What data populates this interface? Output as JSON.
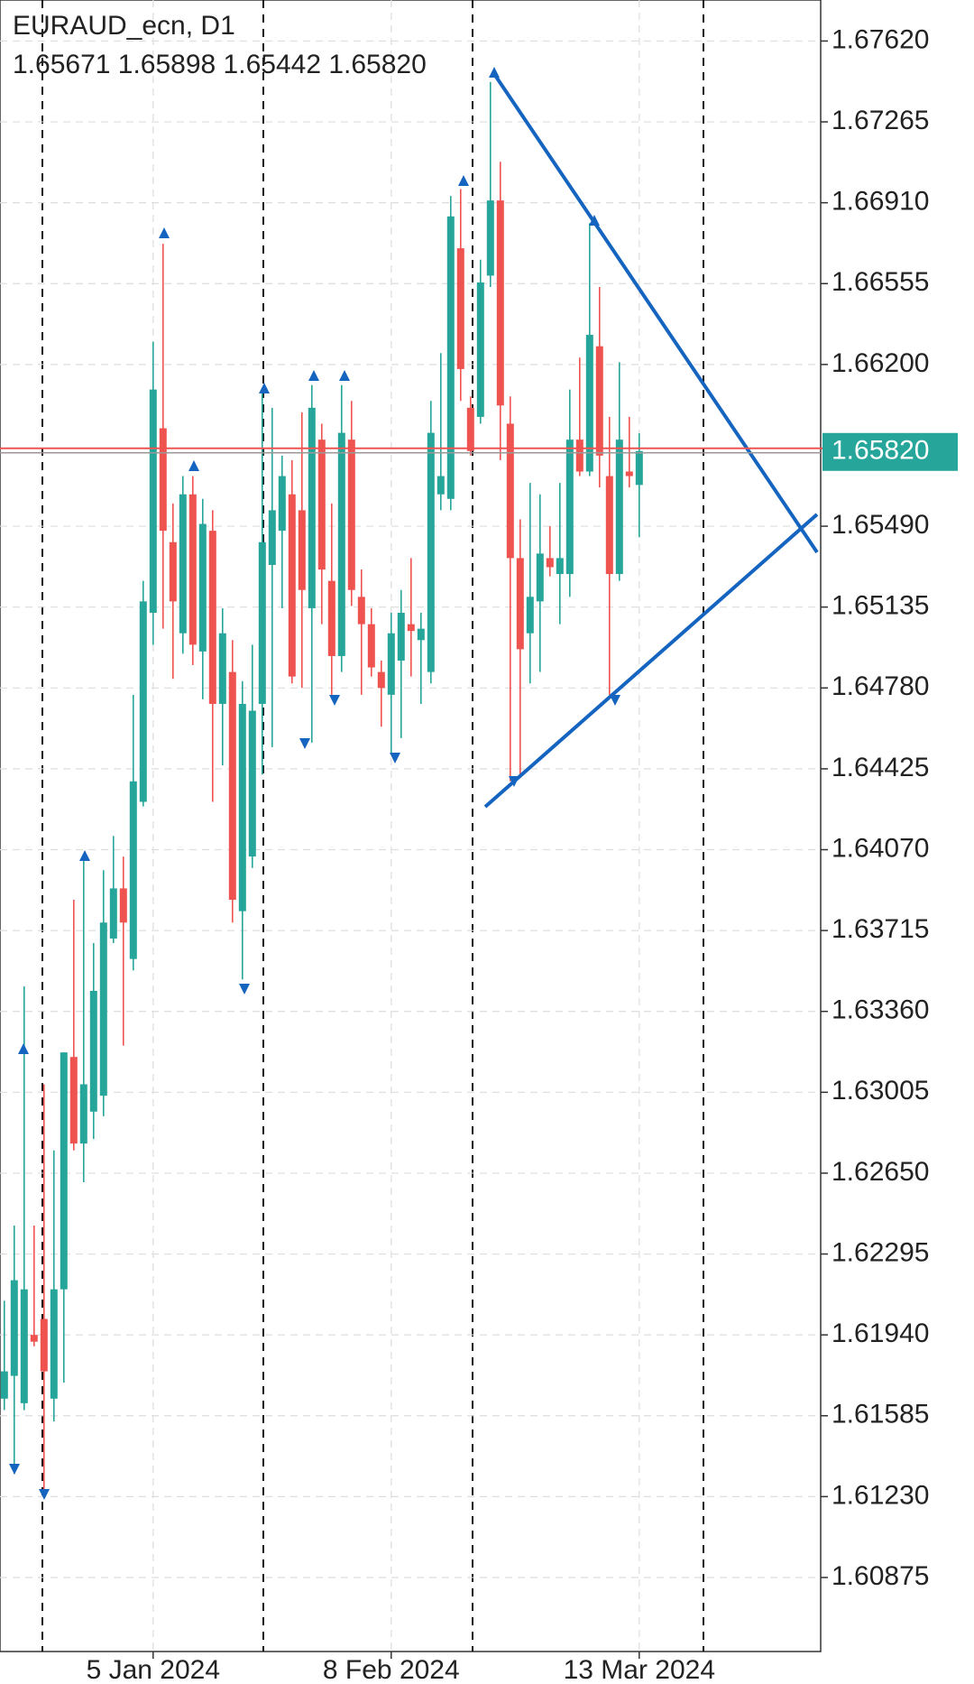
{
  "chart_data": {
    "type": "candlestick",
    "title": "EURAUD_ecn, D1",
    "subtitle": "1.65671 1.65898 1.65442 1.65820",
    "categories": [
      null,
      null,
      null,
      null,
      null,
      null,
      null,
      null,
      null,
      null,
      null,
      null,
      null,
      null,
      null,
      "5 Jan 2024",
      null,
      null,
      null,
      null,
      null,
      null,
      null,
      null,
      null,
      null,
      null,
      null,
      null,
      null,
      null,
      null,
      null,
      null,
      null,
      null,
      null,
      null,
      null,
      "8 Feb 2024",
      null,
      null,
      null,
      null,
      null,
      null,
      null,
      null,
      null,
      null,
      null,
      null,
      null,
      null,
      null,
      null,
      null,
      null,
      null,
      null,
      null,
      null,
      null,
      null,
      "13 Mar 2024"
    ],
    "open": [
      1.6166,
      1.6176,
      1.6164,
      1.6194,
      1.6201,
      1.6166,
      1.6214,
      1.6316,
      1.6278,
      1.6292,
      1.6299,
      1.6368,
      1.639,
      1.6359,
      1.6428,
      1.6511,
      1.6592,
      1.6542,
      1.6502,
      1.6563,
      1.6494,
      1.6547,
      1.6471,
      1.6485,
      1.638,
      1.6404,
      1.6471,
      1.6532,
      1.6547,
      1.6563,
      1.6556,
      1.6513,
      1.6587,
      1.6525,
      1.6492,
      1.6587,
      1.6518,
      1.6506,
      1.6485,
      1.6475,
      1.649,
      1.6506,
      1.6499,
      1.6485,
      1.6563,
      1.6561,
      1.6671,
      1.6601,
      1.6597,
      1.6659,
      1.6692,
      1.6594,
      1.6535,
      1.6502,
      1.6516,
      1.6535,
      1.6528,
      1.6528,
      1.6587,
      1.6573,
      1.6628,
      1.6571,
      1.6528,
      1.6573,
      1.65671
    ],
    "high": [
      1.6209,
      1.6242,
      1.6347,
      1.6242,
      1.6304,
      1.6275,
      1.6318,
      1.6385,
      1.6404,
      1.6366,
      1.6398,
      1.6413,
      1.6404,
      1.6475,
      1.6525,
      1.663,
      1.6673,
      1.6559,
      1.6571,
      1.6571,
      1.6561,
      1.6556,
      1.6513,
      1.6499,
      1.6481,
      1.6497,
      1.6609,
      1.6601,
      1.658,
      1.6578,
      1.6599,
      1.6611,
      1.6594,
      1.6559,
      1.6611,
      1.6604,
      1.653,
      1.6513,
      1.649,
      1.6511,
      1.6521,
      1.6535,
      1.6511,
      1.6604,
      1.6625,
      1.6694,
      1.6697,
      1.6606,
      1.6666,
      1.6744,
      1.6709,
      1.6606,
      1.6552,
      1.6568,
      1.6563,
      1.6549,
      1.6568,
      1.6609,
      1.6623,
      1.6682,
      1.6654,
      1.6597,
      1.6621,
      1.6597,
      1.65898
    ],
    "low": [
      1.6161,
      1.6133,
      1.6161,
      1.6189,
      1.6126,
      1.6156,
      1.6173,
      1.6275,
      1.6261,
      1.628,
      1.629,
      1.6366,
      1.6321,
      1.6354,
      1.6426,
      1.6497,
      1.6504,
      1.6482,
      1.6493,
      1.6488,
      1.6473,
      1.6428,
      1.6444,
      1.6375,
      1.635,
      1.6399,
      1.644,
      1.6452,
      1.6513,
      1.648,
      1.6478,
      1.6454,
      1.6506,
      1.6475,
      1.6485,
      1.6514,
      1.6475,
      1.6483,
      1.6461,
      1.6449,
      1.6456,
      1.6483,
      1.6471,
      1.648,
      1.6556,
      1.6556,
      1.6604,
      1.658,
      1.6594,
      1.6654,
      1.6578,
      1.6437,
      1.644,
      1.648,
      1.6485,
      1.6527,
      1.6506,
      1.6518,
      1.6571,
      1.6571,
      1.6566,
      1.6475,
      1.6525,
      1.6566,
      1.65442
    ],
    "close": [
      1.6178,
      1.6218,
      1.6214,
      1.6191,
      1.6178,
      1.6214,
      1.6318,
      1.6278,
      1.6304,
      1.6345,
      1.6375,
      1.639,
      1.6375,
      1.6437,
      1.6516,
      1.6609,
      1.6547,
      1.6516,
      1.6563,
      1.6497,
      1.655,
      1.6471,
      1.6502,
      1.6385,
      1.6471,
      1.6468,
      1.6542,
      1.6556,
      1.6571,
      1.6483,
      1.6521,
      1.6601,
      1.653,
      1.6492,
      1.659,
      1.6521,
      1.6506,
      1.6487,
      1.6478,
      1.6502,
      1.6511,
      1.6503,
      1.6504,
      1.659,
      1.6571,
      1.6685,
      1.6618,
      1.6582,
      1.6656,
      1.6692,
      1.6602,
      1.6535,
      1.6495,
      1.6518,
      1.6537,
      1.6531,
      1.6535,
      1.6587,
      1.6573,
      1.6633,
      1.658,
      1.6528,
      1.6587,
      1.6571,
      1.6582
    ],
    "up_color": "#26a69a",
    "down_color": "#ef5350",
    "last_price": {
      "value": 1.6582,
      "label": "1.65820"
    },
    "last_price_color": "#26a69a",
    "ylim": [
      1.6055,
      1.678
    ],
    "yticks": [
      {
        "value": 1.6762,
        "label": "1.67620"
      },
      1.67265,
      {
        "value": 1.6691,
        "label": "1.66910"
      },
      1.66555,
      {
        "value": 1.662,
        "label": "1.66200"
      },
      {
        "value": 1.6549,
        "label": "1.65490"
      },
      1.65135,
      {
        "value": 1.6478,
        "label": "1.64780"
      },
      1.64425,
      {
        "value": 1.6407,
        "label": "1.64070"
      },
      1.63715,
      {
        "value": 1.6336,
        "label": "1.63360"
      },
      1.63005,
      {
        "value": 1.6265,
        "label": "1.62650"
      },
      1.62295,
      {
        "value": 1.6194,
        "label": "1.61940"
      },
      1.61585,
      {
        "value": 1.6123,
        "label": "1.61230"
      },
      1.60875
    ],
    "grid": true
  }
}
